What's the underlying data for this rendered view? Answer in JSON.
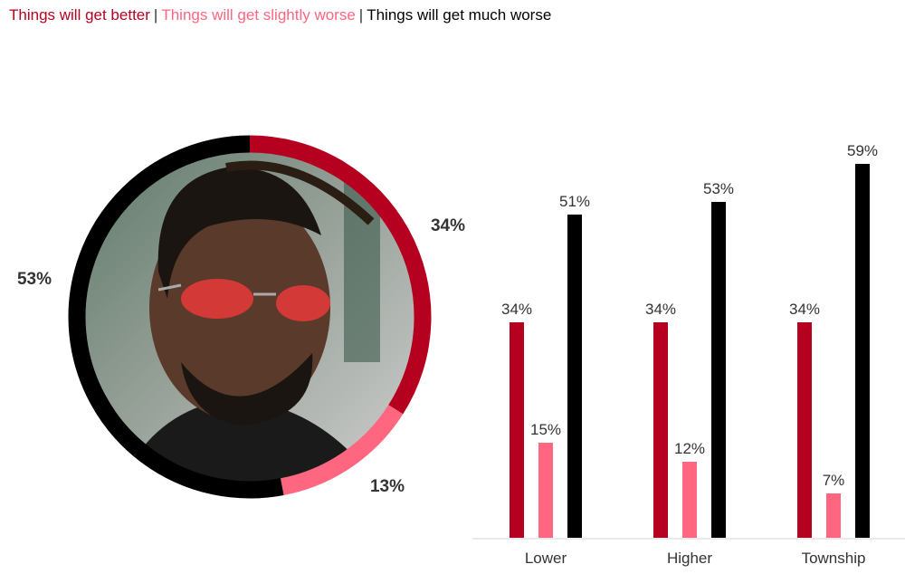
{
  "legend": [
    {
      "label": "Things will get better",
      "color": "#b5001f"
    },
    {
      "label": "Things will get slightly worse",
      "color": "#ff6680"
    },
    {
      "label": "Things will get much worse",
      "color": "#000000"
    }
  ],
  "legend_separator": "|",
  "chart_data": [
    {
      "type": "pie",
      "variant": "donut",
      "center_image": "photo of man with red sunglasses",
      "slices": [
        {
          "series": "Things will get better",
          "value": 34,
          "label": "34%",
          "color": "#b5001f"
        },
        {
          "series": "Things will get slightly worse",
          "value": 13,
          "label": "13%",
          "color": "#ff6680"
        },
        {
          "series": "Things will get much worse",
          "value": 53,
          "label": "53%",
          "color": "#000000"
        }
      ]
    },
    {
      "type": "bar",
      "categories": [
        "Lower",
        "Higher",
        "Township"
      ],
      "series": [
        {
          "name": "Things will get better",
          "color": "#b5001f",
          "values": [
            34,
            34,
            34
          ],
          "labels": [
            "34%",
            "34%",
            "34%"
          ]
        },
        {
          "name": "Things will get slightly worse",
          "color": "#ff6680",
          "values": [
            15,
            12,
            7
          ],
          "labels": [
            "15%",
            "12%",
            "7%"
          ]
        },
        {
          "name": "Things will get much worse",
          "color": "#000000",
          "values": [
            51,
            53,
            59
          ],
          "labels": [
            "51%",
            "53%",
            "59%"
          ]
        }
      ],
      "ylim": [
        0,
        60
      ],
      "grid": false,
      "legend": "top-left"
    }
  ]
}
